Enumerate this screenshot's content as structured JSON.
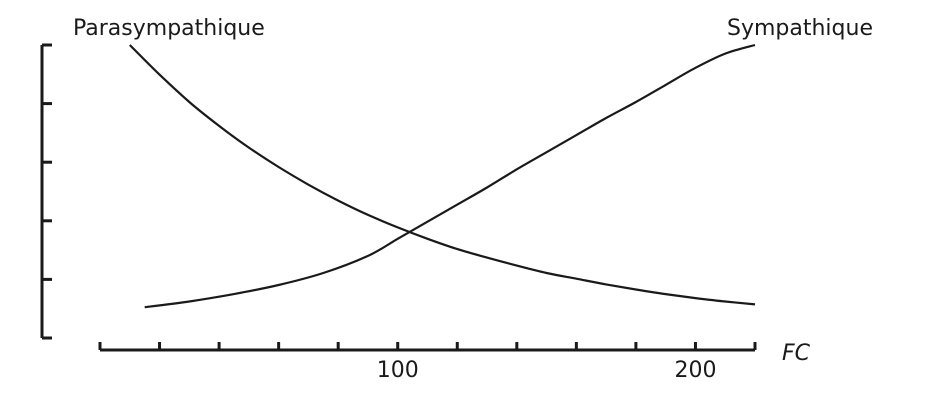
{
  "chart_data": {
    "type": "line",
    "xlabel": "FC",
    "ylabel": "",
    "xlim": [
      0,
      220
    ],
    "ylim": [
      0,
      5
    ],
    "x_tick_labels": [
      {
        "value": 100,
        "label": "100"
      },
      {
        "value": 200,
        "label": "200"
      }
    ],
    "x_ticks": [
      0,
      20,
      40,
      60,
      80,
      100,
      120,
      140,
      160,
      180,
      200,
      220
    ],
    "y_ticks": [
      0,
      1,
      2,
      3,
      4,
      5
    ],
    "grid": false,
    "legend": "none",
    "series": [
      {
        "name": "Parasympathique",
        "x": [
          10,
          20,
          30,
          40,
          50,
          60,
          70,
          80,
          90,
          100,
          110,
          120,
          130,
          140,
          150,
          160,
          170,
          180,
          190,
          200,
          210,
          220
        ],
        "y": [
          5.0,
          4.48,
          4.0,
          3.58,
          3.2,
          2.86,
          2.55,
          2.27,
          2.02,
          1.8,
          1.6,
          1.42,
          1.27,
          1.13,
          1.0,
          0.9,
          0.8,
          0.71,
          0.63,
          0.56,
          0.5,
          0.45
        ]
      },
      {
        "name": "Sympathique",
        "x": [
          15,
          30,
          45,
          60,
          75,
          90,
          100,
          110,
          120,
          130,
          140,
          150,
          160,
          170,
          180,
          190,
          200,
          210,
          220
        ],
        "y": [
          0.4,
          0.5,
          0.63,
          0.79,
          1.0,
          1.3,
          1.6,
          1.9,
          2.2,
          2.5,
          2.82,
          3.12,
          3.42,
          3.72,
          4.0,
          4.3,
          4.6,
          4.85,
          5.0
        ]
      }
    ]
  }
}
